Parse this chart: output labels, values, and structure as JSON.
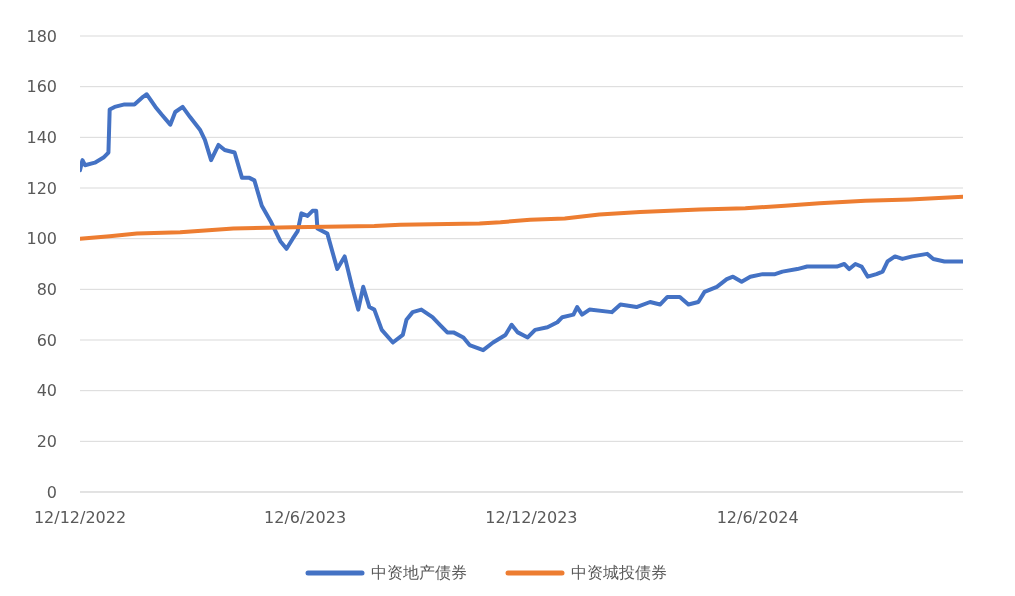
{
  "chart_data": {
    "type": "line",
    "x": [
      "2022-12-12",
      "2022-12-14",
      "2022-12-16",
      "2022-12-24",
      "2022-12-31",
      "2023-01-04",
      "2023-01-05",
      "2023-01-09",
      "2023-01-17",
      "2023-01-25",
      "2023-02-01",
      "2023-02-04",
      "2023-02-11",
      "2023-02-16",
      "2023-02-23",
      "2023-02-27",
      "2023-03-05",
      "2023-03-11",
      "2023-03-19",
      "2023-03-23",
      "2023-03-28",
      "2023-04-03",
      "2023-04-08",
      "2023-04-16",
      "2023-04-22",
      "2023-04-28",
      "2023-05-02",
      "2023-05-08",
      "2023-05-15",
      "2023-05-23",
      "2023-05-28",
      "2023-06-02",
      "2023-06-06",
      "2023-06-09",
      "2023-06-14",
      "2023-06-18",
      "2023-06-21",
      "2023-06-22",
      "2023-06-30",
      "2023-07-08",
      "2023-07-14",
      "2023-07-20",
      "2023-07-25",
      "2023-07-29",
      "2023-08-03",
      "2023-08-07",
      "2023-08-13",
      "2023-08-22",
      "2023-08-30",
      "2023-09-02",
      "2023-09-07",
      "2023-09-14",
      "2023-09-23",
      "2023-09-29",
      "2023-10-05",
      "2023-10-10",
      "2023-10-18",
      "2023-10-23",
      "2023-11-03",
      "2023-11-11",
      "2023-11-21",
      "2023-11-26",
      "2023-12-01",
      "2023-12-09",
      "2023-12-15",
      "2023-12-25",
      "2024-01-02",
      "2024-01-06",
      "2024-01-15",
      "2024-01-18",
      "2024-01-22",
      "2024-01-28",
      "2024-02-15",
      "2024-02-22",
      "2024-03-06",
      "2024-03-17",
      "2024-03-25",
      "2024-03-31",
      "2024-04-10",
      "2024-04-17",
      "2024-04-25",
      "2024-04-30",
      "2024-05-10",
      "2024-05-18",
      "2024-05-23",
      "2024-05-30",
      "2024-06-06",
      "2024-06-16",
      "2024-06-26",
      "2024-07-02",
      "2024-07-14",
      "2024-07-22",
      "2024-08-01",
      "2024-08-15",
      "2024-08-21",
      "2024-08-25",
      "2024-08-30",
      "2024-09-04",
      "2024-09-09",
      "2024-09-16",
      "2024-09-21",
      "2024-09-25",
      "2024-10-01",
      "2024-10-07",
      "2024-10-15",
      "2024-10-27",
      "2024-11-01",
      "2024-11-10",
      "2024-11-17",
      "2024-11-25"
    ],
    "series": [
      {
        "name": "中资地产债券",
        "color": "#4472c4",
        "values": [
          127,
          131,
          129,
          130,
          132,
          134,
          151,
          152,
          153,
          153,
          156,
          157,
          152,
          149,
          145,
          150,
          152,
          148,
          143,
          139,
          131,
          137,
          135,
          134,
          124,
          124,
          123,
          113,
          107,
          99,
          96,
          100,
          103,
          110,
          109,
          111,
          111,
          104,
          102,
          88,
          93,
          81,
          72,
          81,
          73,
          72,
          64,
          59,
          62,
          68,
          71,
          72,
          69,
          66,
          63,
          63,
          61,
          58,
          56,
          59,
          62,
          66,
          63,
          61,
          64,
          65,
          67,
          69,
          70,
          73,
          70,
          72,
          71,
          74,
          73,
          75,
          74,
          77,
          77,
          74,
          75,
          79,
          81,
          84,
          85,
          83,
          85,
          86,
          86,
          87,
          88,
          89,
          89,
          89,
          90,
          88,
          90,
          89,
          85,
          86,
          87,
          91,
          93,
          92,
          93,
          94,
          92,
          91,
          91,
          91
        ]
      },
      {
        "name": "中资城投债券",
        "color": "#ed7d31",
        "x": [
          "2022-12-12",
          "2023-01-05",
          "2023-01-27",
          "2023-03-03",
          "2023-04-15",
          "2023-06-02",
          "2023-08-07",
          "2023-08-28",
          "2023-10-31",
          "2023-11-17",
          "2023-12-11",
          "2024-01-08",
          "2024-02-05",
          "2024-03-09",
          "2024-04-26",
          "2024-06-02",
          "2024-07-04",
          "2024-08-01",
          "2024-09-07",
          "2024-10-13",
          "2024-11-25"
        ],
        "values": [
          100,
          101,
          102,
          102.5,
          104,
          104.5,
          105,
          105.5,
          106,
          106.5,
          107.5,
          108,
          109.5,
          110.5,
          111.5,
          112,
          113,
          114,
          115,
          115.5,
          116.5
        ]
      }
    ],
    "xlim": [
      "2022-12-12",
      "2024-11-25"
    ],
    "xticks": [
      {
        "value": "2022-12-12",
        "label": "12/12/2022"
      },
      {
        "value": "2023-06-12",
        "label": "12/6/2023"
      },
      {
        "value": "2023-12-12",
        "label": "12/12/2023"
      },
      {
        "value": "2024-06-12",
        "label": "12/6/2024"
      }
    ],
    "ylim": [
      0,
      180
    ],
    "yticks": [
      0,
      20,
      40,
      60,
      80,
      100,
      120,
      140,
      160,
      180
    ],
    "grid": "y",
    "legend": "bottom",
    "marker": "none",
    "line_style": "solid"
  }
}
